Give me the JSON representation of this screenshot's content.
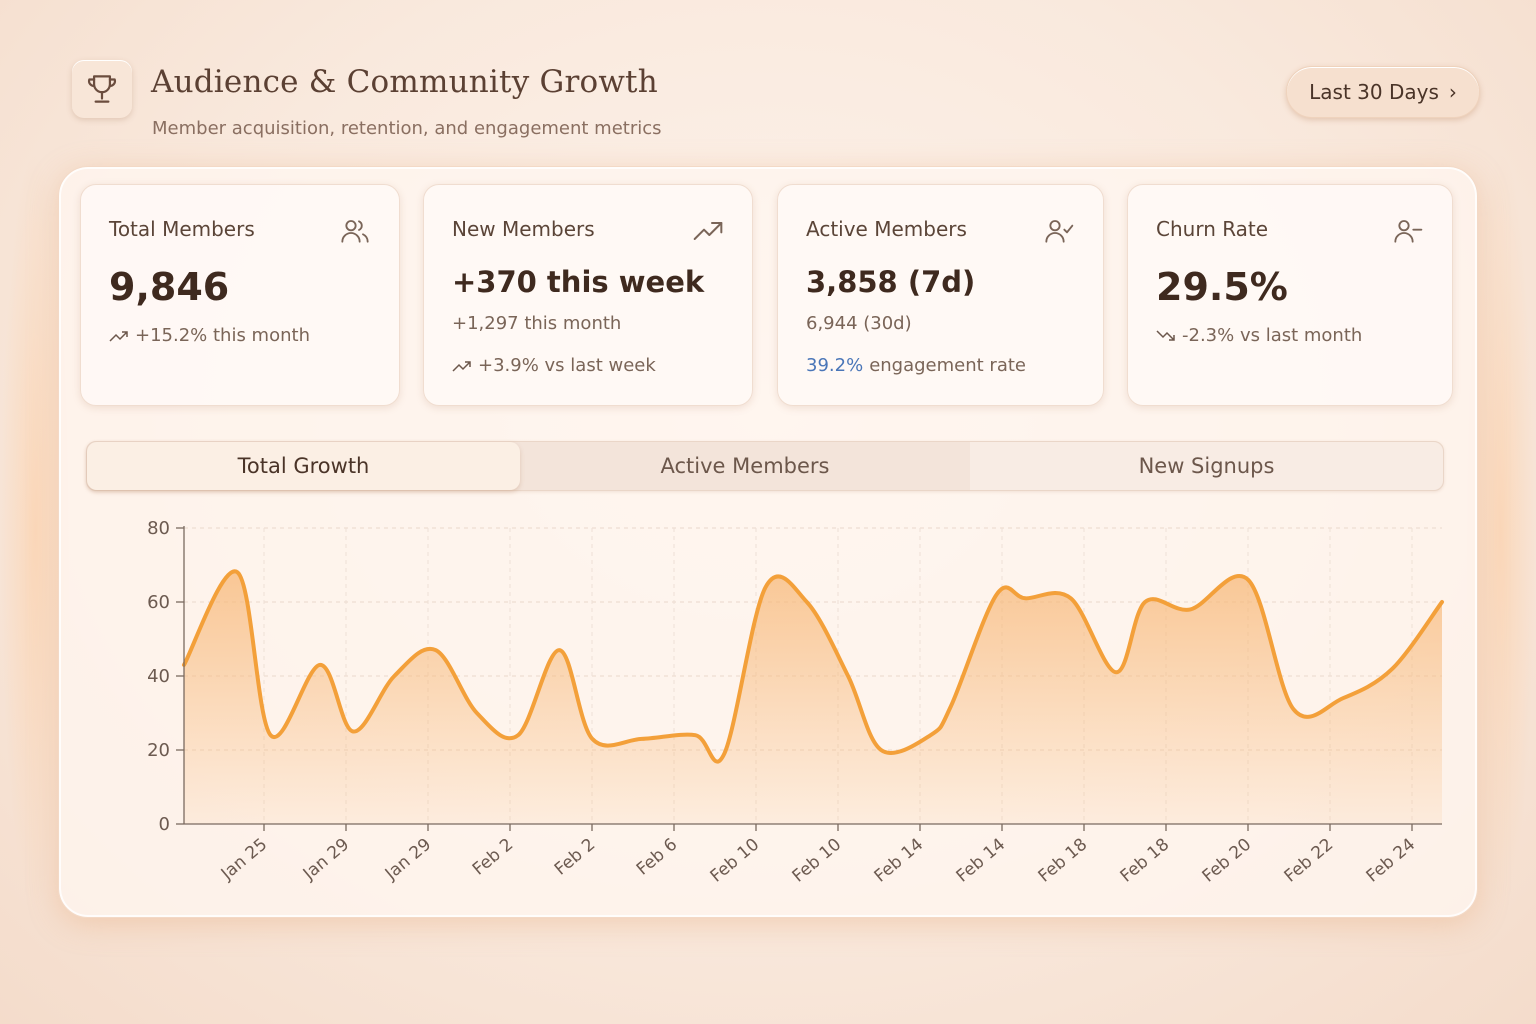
{
  "header": {
    "title": "Audience & Community Growth",
    "subtitle": "Member acquisition, retention, and engagement metrics",
    "range_label": "Last 30 Days",
    "range_chevron": "›",
    "icon": "trophy-icon"
  },
  "cards": [
    {
      "label": "Total Members",
      "icon": "users-icon",
      "value": "9,846",
      "trend_icon": "trend-up-icon",
      "line1": "+15.2% this month"
    },
    {
      "label": "New Members",
      "icon": "trending-up-icon",
      "value": "+370 this week",
      "line1": "+1,297 this month",
      "trend_icon": "trend-up-icon",
      "line2": "+3.9% vs last week"
    },
    {
      "label": "Active Members",
      "icon": "user-check-icon",
      "value": "3,858 (7d)",
      "line1": "6,944 (30d)",
      "line2_accent": "39.2%",
      "line2_rest": "engagement rate"
    },
    {
      "label": "Churn Rate",
      "icon": "user-minus-icon",
      "value": "29.5%",
      "trend_icon": "trend-down-icon",
      "line1": "-2.3% vs last month"
    }
  ],
  "tabs": [
    {
      "label": "Total Growth",
      "active": true
    },
    {
      "label": "Active Members",
      "active": false
    },
    {
      "label": "New Signups",
      "active": false
    }
  ],
  "colors": {
    "line": "#f3a03a",
    "fill": "#f7b878",
    "accent_blue": "#4a76b8"
  },
  "chart_data": {
    "type": "area",
    "title": "",
    "xlabel": "",
    "ylabel": "",
    "ylim": [
      0,
      80
    ],
    "yticks": [
      0,
      20,
      40,
      60,
      80
    ],
    "tick_labels": [
      "Jan 25",
      "Jan 29",
      "Jan 29",
      "Feb 2",
      "Feb 2",
      "Feb 6",
      "Feb 10",
      "Feb 10",
      "Feb 14",
      "Feb 14",
      "Feb 18",
      "Feb 18",
      "Feb 20",
      "Feb 22",
      "Feb 24"
    ],
    "series": [
      {
        "name": "Total Growth",
        "x": [
          0,
          0.65,
          1.05,
          1.65,
          2.05,
          2.55,
          3.05,
          3.55,
          4.05,
          4.55,
          4.95,
          5.55,
          6.2,
          6.55,
          7.05,
          7.55,
          8.05,
          8.45,
          9.05,
          9.3,
          9.85,
          10.2,
          10.75,
          11.3,
          11.65,
          12.2,
          12.9,
          13.45,
          14.05,
          14.65,
          15.25
        ],
        "values": [
          43,
          68,
          24,
          43,
          25,
          40,
          47,
          30,
          24,
          47,
          23,
          23,
          24,
          19,
          64,
          60,
          40,
          20,
          24,
          32,
          62,
          61,
          61,
          41,
          60,
          58,
          66,
          31,
          34,
          42,
          60
        ]
      }
    ]
  }
}
